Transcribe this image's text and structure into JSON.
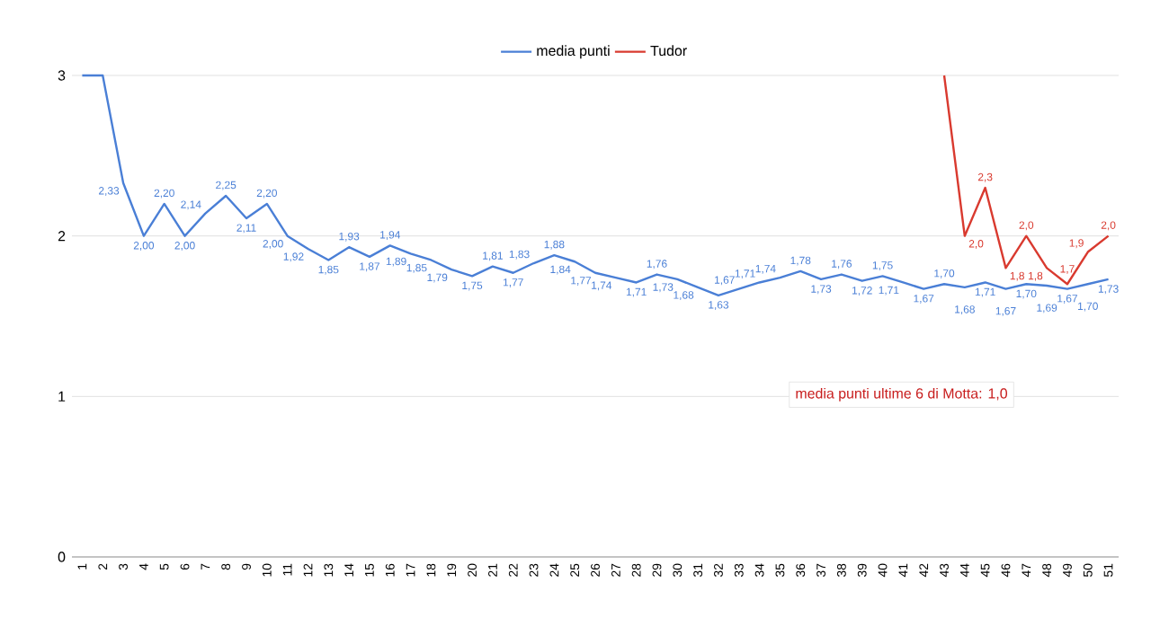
{
  "chart_data": {
    "type": "line",
    "categories": [
      "1",
      "2",
      "3",
      "4",
      "5",
      "6",
      "7",
      "8",
      "9",
      "10",
      "11",
      "12",
      "13",
      "14",
      "15",
      "16",
      "17",
      "18",
      "19",
      "20",
      "21",
      "22",
      "23",
      "24",
      "25",
      "26",
      "27",
      "28",
      "29",
      "30",
      "31",
      "32",
      "33",
      "34",
      "35",
      "36",
      "37",
      "38",
      "39",
      "40",
      "41",
      "42",
      "43",
      "44",
      "45",
      "46",
      "47",
      "48",
      "49",
      "50",
      "51"
    ],
    "series": [
      {
        "name": "media punti",
        "color": "#4a7fd6",
        "values": [
          3.0,
          3.0,
          2.33,
          2.0,
          2.2,
          2.0,
          2.14,
          2.25,
          2.11,
          2.2,
          2.0,
          1.92,
          1.85,
          1.93,
          1.87,
          1.94,
          1.89,
          1.85,
          1.79,
          1.75,
          1.81,
          1.77,
          1.83,
          1.88,
          1.84,
          1.77,
          1.74,
          1.71,
          1.76,
          1.73,
          1.68,
          1.63,
          1.67,
          1.71,
          1.74,
          1.78,
          1.73,
          1.76,
          1.72,
          1.75,
          1.71,
          1.67,
          1.7,
          1.68,
          1.71,
          1.67,
          1.7,
          1.69,
          1.67,
          1.7,
          1.73
        ],
        "value_labels": [
          null,
          null,
          "2,33",
          "2,00",
          "2,20",
          "2,00",
          "2,14",
          "2,25",
          "2,11",
          "2,20",
          "2,00",
          "1,92",
          "1,85",
          "1,93",
          "1,87",
          "1,94",
          "1,89",
          "1,85",
          "1,79",
          "1,75",
          "1,81",
          "1,77",
          "1,83",
          "1,88",
          "1,84",
          "1,77",
          "1,74",
          "1,71",
          "1,76",
          "1,73",
          "1,68",
          "1,63",
          "1,67",
          "1,71",
          "1,74",
          "1,78",
          "1,73",
          "1,76",
          "1,72",
          "1,75",
          "1,71",
          "1,67",
          "1,70",
          "1,68",
          "1,71",
          "1,67",
          "1,70",
          "1,69",
          "1,67",
          "1,70",
          "1,73"
        ]
      },
      {
        "name": "Tudor",
        "color": "#d93a2f",
        "values": [
          null,
          null,
          null,
          null,
          null,
          null,
          null,
          null,
          null,
          null,
          null,
          null,
          null,
          null,
          null,
          null,
          null,
          null,
          null,
          null,
          null,
          null,
          null,
          null,
          null,
          null,
          null,
          null,
          null,
          null,
          null,
          null,
          null,
          null,
          null,
          null,
          null,
          null,
          null,
          null,
          null,
          null,
          3.0,
          2.0,
          2.3,
          1.8,
          2.0,
          1.8,
          1.7,
          1.9,
          2.0
        ],
        "value_labels": [
          null,
          null,
          null,
          null,
          null,
          null,
          null,
          null,
          null,
          null,
          null,
          null,
          null,
          null,
          null,
          null,
          null,
          null,
          null,
          null,
          null,
          null,
          null,
          null,
          null,
          null,
          null,
          null,
          null,
          null,
          null,
          null,
          null,
          null,
          null,
          null,
          null,
          null,
          null,
          null,
          null,
          null,
          null,
          "2,0",
          "2,3",
          "1,8",
          "2,0",
          "1,8",
          "1,7",
          "1,9",
          "2,0"
        ]
      }
    ],
    "ylim": [
      0,
      3
    ],
    "yticks": [
      0,
      1,
      2,
      3
    ],
    "grid": "y",
    "legend": "top",
    "annotations": [
      "media punti ultime 6 di Motta: 1,0"
    ]
  }
}
